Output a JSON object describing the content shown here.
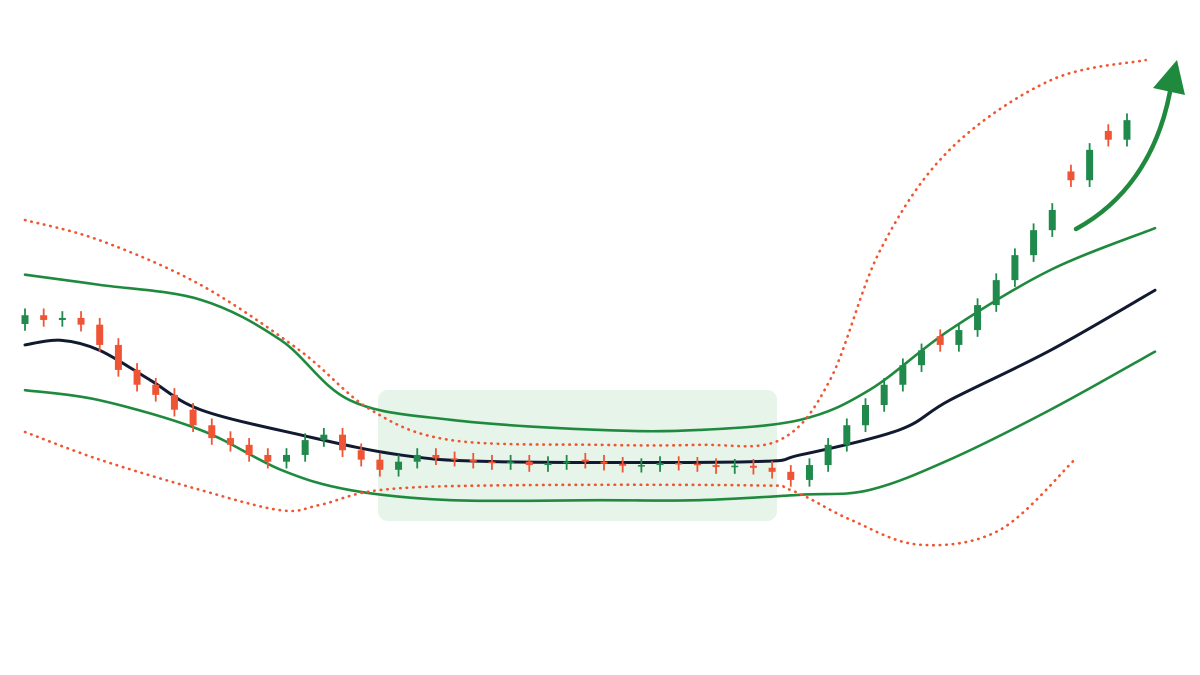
{
  "chart_data": {
    "type": "candlestick",
    "xlim": [
      0,
      60.5
    ],
    "ylim": [
      0,
      100
    ],
    "up_color": "#1f8a4c",
    "down_color": "#ef5535",
    "x": [
      0,
      1,
      2,
      3,
      4,
      5,
      6,
      7,
      8,
      9,
      10,
      11,
      12,
      13,
      14,
      15,
      16,
      17,
      18,
      19,
      20,
      21,
      22,
      23,
      24,
      25,
      26,
      27,
      28,
      29,
      30,
      31,
      32,
      33,
      34,
      35,
      36,
      37,
      38,
      39,
      40,
      41,
      42,
      43,
      44,
      45,
      46,
      47,
      48,
      49,
      50,
      51,
      52,
      53,
      54,
      55,
      56,
      57,
      58,
      59
    ],
    "open": [
      52.0,
      53.3,
      52.6,
      52.9,
      51.9,
      48.9,
      45.2,
      43.0,
      41.5,
      39.3,
      37.0,
      35.1,
      34.1,
      32.6,
      31.6,
      32.6,
      34.8,
      35.6,
      33.3,
      31.9,
      30.4,
      31.6,
      32.6,
      32.1,
      31.9,
      31.6,
      31.4,
      31.6,
      31.1,
      31.4,
      31.9,
      31.6,
      31.3,
      31.0,
      31.1,
      31.4,
      31.3,
      31.1,
      30.8,
      31.0,
      30.7,
      30.1,
      28.9,
      31.1,
      34.1,
      37.0,
      40.0,
      43.0,
      45.9,
      50.2,
      48.9,
      51.1,
      54.8,
      58.5,
      62.2,
      65.9,
      74.6,
      73.3,
      80.6,
      79.3
    ],
    "high": [
      54.3,
      54.3,
      53.9,
      53.9,
      52.9,
      49.9,
      46.2,
      44.0,
      42.5,
      40.3,
      38.0,
      36.1,
      35.1,
      33.6,
      33.6,
      35.8,
      36.6,
      36.6,
      34.3,
      32.9,
      32.6,
      33.6,
      33.6,
      33.1,
      32.9,
      32.6,
      32.6,
      32.6,
      32.4,
      32.6,
      32.9,
      32.6,
      32.3,
      32.1,
      32.4,
      32.4,
      32.3,
      32.1,
      32.0,
      32.0,
      31.7,
      31.1,
      32.1,
      35.1,
      38.0,
      41.0,
      44.0,
      46.9,
      49.1,
      51.2,
      52.1,
      55.8,
      59.5,
      63.2,
      66.9,
      69.9,
      75.6,
      78.8,
      81.6,
      83.2
    ],
    "low": [
      51.0,
      51.6,
      51.6,
      50.9,
      47.9,
      44.2,
      42.0,
      40.5,
      38.3,
      36.0,
      34.1,
      33.1,
      31.6,
      30.6,
      30.6,
      31.6,
      33.8,
      32.3,
      30.9,
      29.4,
      29.4,
      30.6,
      31.1,
      30.9,
      30.6,
      30.4,
      30.4,
      30.1,
      30.1,
      30.4,
      30.6,
      30.3,
      30.0,
      30.0,
      30.1,
      30.3,
      30.1,
      29.8,
      29.8,
      29.7,
      29.1,
      27.9,
      27.9,
      30.1,
      33.1,
      36.0,
      39.0,
      42.0,
      44.9,
      47.9,
      47.9,
      50.1,
      53.8,
      57.5,
      61.2,
      64.9,
      72.3,
      72.3,
      78.3,
      78.3
    ],
    "close": [
      53.3,
      52.6,
      52.9,
      51.9,
      48.9,
      45.2,
      43.0,
      41.5,
      39.3,
      37.0,
      35.1,
      34.1,
      32.6,
      31.6,
      32.6,
      34.8,
      35.6,
      33.3,
      31.9,
      30.4,
      31.6,
      32.6,
      32.1,
      31.9,
      31.6,
      31.4,
      31.6,
      31.1,
      31.4,
      31.6,
      31.6,
      31.3,
      31.0,
      31.1,
      31.4,
      31.3,
      31.1,
      30.8,
      31.0,
      30.7,
      30.1,
      28.9,
      31.1,
      34.1,
      37.0,
      40.0,
      43.0,
      45.9,
      48.1,
      48.9,
      51.1,
      54.8,
      58.5,
      62.2,
      65.9,
      68.9,
      73.3,
      77.8,
      79.3,
      82.2
    ],
    "series": [
      {
        "color": "#1f8a3e",
        "style": "solid",
        "x": [
          0,
          4.0,
          9.4,
          13.7,
          17.4,
          22.8,
          30.8,
          36.1,
          41.5,
          45.2,
          49.5,
          54.9,
          60.5
        ],
        "values": [
          59.3,
          57.8,
          55.6,
          49.6,
          40.7,
          37.8,
          36.3,
          36.3,
          37.8,
          42.2,
          51.1,
          60.0,
          66.2
        ]
      },
      {
        "color": "#111a30",
        "style": "solid",
        "x": [
          0,
          1.9,
          4.0,
          6.7,
          9.4,
          14.7,
          20.1,
          25.4,
          38.8,
          41.5,
          46.8,
          49.5,
          54.9,
          60.5
        ],
        "values": [
          48.9,
          49.6,
          48.1,
          43.7,
          39.3,
          35.6,
          32.6,
          31.6,
          31.6,
          32.6,
          36.3,
          40.7,
          48.1,
          57.0
        ]
      },
      {
        "color": "#1f8a3e",
        "style": "solid",
        "x": [
          0,
          4.0,
          9.4,
          13.7,
          17.4,
          22.8,
          30.8,
          36.1,
          41.5,
          45.2,
          49.5,
          54.9,
          60.5
        ],
        "values": [
          42.2,
          40.7,
          36.3,
          30.4,
          27.4,
          25.9,
          25.9,
          25.9,
          26.7,
          27.4,
          31.9,
          39.3,
          47.9
        ]
      },
      {
        "color": "#f0552f",
        "style": "dotted",
        "x": [
          0,
          4.0,
          9.4,
          14.7,
          18.5,
          22.8,
          30.8,
          36.1,
          40.4,
          43.1,
          45.8,
          49.5,
          54.9,
          60.0
        ],
        "values": [
          67.4,
          64.4,
          57.8,
          48.1,
          39.3,
          34.8,
          34.1,
          34.1,
          34.8,
          43.7,
          63.0,
          77.8,
          88.1,
          91.1
        ]
      },
      {
        "color": "#f0552f",
        "style": "dotted",
        "x": [
          0,
          4.0,
          9.4,
          13.7,
          15.8,
          19.0,
          25.4,
          38.8,
          41.0,
          44.2,
          47.9,
          52.2,
          56.2
        ],
        "values": [
          36.0,
          31.9,
          27.4,
          24.4,
          25.2,
          27.4,
          28.1,
          28.1,
          27.4,
          23.0,
          19.3,
          21.5,
          31.9
        ]
      }
    ]
  }
}
